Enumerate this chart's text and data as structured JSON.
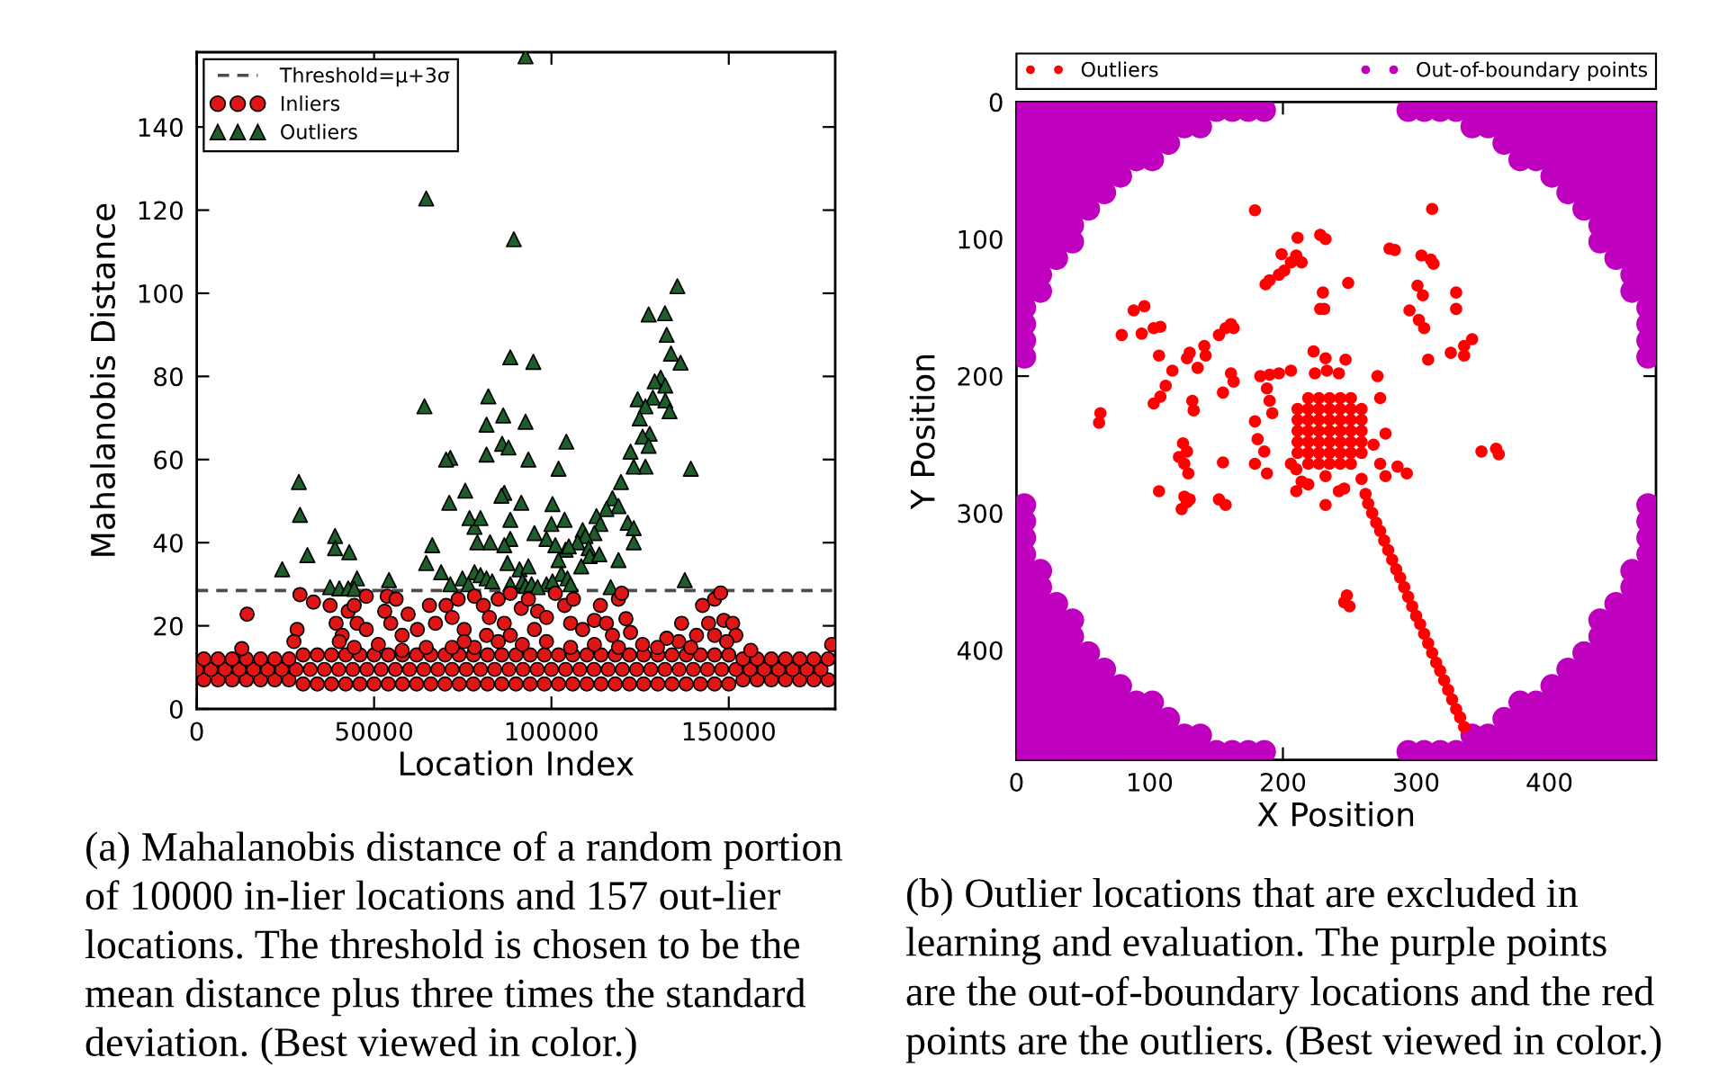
{
  "chart_data": [
    {
      "type": "scatter",
      "xlabel": "Location Index",
      "ylabel": "Mahalanobis Distance",
      "xlim": [
        0,
        180000
      ],
      "ylim": [
        0,
        158
      ],
      "xticks": [
        0,
        50000,
        100000,
        150000
      ],
      "yticks": [
        0,
        20,
        40,
        60,
        80,
        100,
        120,
        140
      ],
      "marker": "circle",
      "legend": "top left",
      "ref_lines": [
        {
          "axis": "y",
          "value": 28.5,
          "label": "Threshold=μ+3σ",
          "color": "#4d4d4d",
          "line_style": "dashed"
        }
      ],
      "series": [
        {
          "name": "Inliers",
          "color": "#e01515",
          "x": [
            2000,
            6000,
            10000,
            14000,
            18000,
            22000,
            26000,
            30000,
            34000,
            38000,
            42000,
            46000,
            50000,
            54000,
            58000,
            62000,
            66000,
            70000,
            74000,
            78000,
            82000,
            86000,
            90000,
            94000,
            98000,
            102000,
            106000,
            110000,
            114000,
            118000,
            122000,
            126000,
            130000,
            134000,
            138000,
            142000,
            146000,
            150000,
            154000,
            158000,
            162000,
            166000,
            170000,
            174000,
            178000,
            0,
            4000,
            8000,
            12000,
            16000,
            20000,
            24000,
            28000,
            32000,
            36000,
            40000,
            44000,
            48000,
            52000,
            56000,
            60000,
            64000,
            68000,
            72000,
            76000,
            80000,
            84000,
            88000,
            92000,
            96000,
            100000,
            104000,
            108000,
            112000,
            116000,
            120000,
            124000,
            128000,
            132000,
            136000,
            140000,
            144000,
            148000,
            152000,
            156000,
            160000,
            164000,
            168000,
            172000,
            176000,
            2000,
            6000,
            10000,
            14000,
            18000,
            22000,
            26000,
            30000,
            34000,
            38000,
            42000,
            46000,
            50000,
            54000,
            58000,
            62000,
            66000,
            70000,
            74000,
            78000,
            82000,
            86000,
            90000,
            94000,
            98000,
            102000,
            106000,
            110000,
            114000,
            118000,
            122000,
            126000,
            130000,
            134000,
            138000,
            142000,
            146000,
            150000,
            154000,
            158000,
            162000,
            166000,
            170000,
            174000,
            178000,
            14200,
            12700,
            29100,
            28300,
            27400,
            32900,
            37600,
            39300,
            41000,
            42700,
            45200,
            44400,
            47800,
            40200,
            47800,
            53000,
            54700,
            53700,
            56200,
            57900,
            59600,
            62200,
            65600,
            67300,
            70300,
            72000,
            73700,
            75400,
            78300,
            80800,
            82500,
            85000,
            86700,
            88400,
            91500,
            93500,
            96100,
            98600,
            101100,
            103700,
            106200,
            105400,
            108800,
            112100,
            113800,
            115500,
            117200,
            118900,
            121000,
            122300,
            119800,
            142600,
            146000,
            147700,
            144300,
            148600,
            151100,
            152000,
            146000,
            140900,
            136700,
            135900,
            132500,
            129900,
            179000,
            72000,
            78300,
            85000,
            91800,
            98600,
            105400,
            88400,
            95200,
            81700,
            75400,
            64700,
            57900,
            51200,
            44400,
            112100,
            118900,
            125700,
            139300,
            149400,
            156200
          ],
          "values": [
            7,
            7,
            7,
            7,
            7,
            7,
            7,
            6,
            6,
            6,
            6,
            6,
            6,
            6,
            6,
            6,
            6,
            6,
            6,
            6,
            6,
            6,
            6,
            6,
            6,
            6,
            6,
            6,
            6,
            6,
            6,
            6,
            6,
            6,
            6,
            6,
            6,
            6,
            7,
            7,
            7,
            7,
            7,
            7,
            7,
            9.5,
            9.5,
            9.5,
            9.5,
            9.5,
            9.5,
            9.5,
            9.5,
            9.5,
            9.5,
            9.5,
            9.5,
            9.5,
            9.5,
            9.5,
            9.5,
            9.5,
            9.5,
            9.5,
            9.5,
            9.5,
            9.5,
            9.5,
            9.5,
            9.5,
            9.5,
            9.5,
            9.5,
            9.5,
            9.5,
            9.5,
            9.5,
            9.5,
            9.5,
            9.5,
            9.5,
            9.5,
            9.5,
            9.5,
            9.5,
            9.5,
            9.5,
            9.5,
            9.5,
            9.5,
            12,
            12,
            12,
            12,
            12,
            12,
            12,
            13,
            13,
            13,
            13,
            13,
            13,
            13,
            13,
            13,
            13,
            13,
            13,
            13,
            13,
            13,
            13,
            13,
            13,
            13,
            13,
            13,
            13,
            13,
            13,
            13,
            13,
            13,
            13,
            13,
            13,
            13,
            12,
            12,
            12,
            12,
            12,
            12,
            12,
            22.8,
            14.5,
            27.5,
            19.1,
            16.2,
            25.7,
            24.9,
            20.6,
            17.7,
            23.5,
            20.6,
            24.9,
            19.1,
            16.2,
            27.1,
            23.5,
            20.6,
            27.1,
            26.4,
            17.7,
            22.8,
            19.1,
            24.9,
            20.6,
            24.9,
            22,
            26.4,
            19.1,
            27.1,
            24.9,
            22,
            26.4,
            20.6,
            27.8,
            24.2,
            26.4,
            23.5,
            22,
            27.8,
            24.9,
            26.4,
            20.6,
            19.1,
            21.3,
            24.9,
            20.6,
            17.7,
            26.4,
            21.7,
            18.4,
            27.8,
            24.9,
            26.4,
            27.9,
            20.6,
            21.3,
            20.6,
            17.7,
            17.7,
            17.7,
            20.6,
            16.2,
            17,
            14.8,
            15.5,
            14.8,
            14.8,
            16.2,
            15.5,
            16.2,
            14.8,
            17.7,
            19.1,
            17.7,
            16.2,
            14.8,
            14.1,
            15.5,
            14.8,
            15.5,
            14.8,
            15.5,
            14.8,
            16.2,
            14.1
          ]
        },
        {
          "name": "Outliers",
          "color": "#1d5e2a",
          "marker": "triangle",
          "x": [
            92700,
            64700,
            89400,
            135500,
            127400,
            132000,
            132500,
            133700,
            136400,
            88400,
            94900,
            130800,
            129100,
            132100,
            128600,
            124300,
            132100,
            133300,
            126500,
            124900,
            127700,
            125700,
            122300,
            127400,
            126500,
            123200,
            139300,
            119600,
            117200,
            118900,
            115500,
            121500,
            123200,
            123200,
            112700,
            113800,
            112100,
            108800,
            109600,
            107400,
            110500,
            110800,
            113500,
            108400,
            118900,
            104000,
            104900,
            103700,
            104200,
            102000,
            100300,
            100000,
            98600,
            101100,
            102000,
            102800,
            104500,
            98600,
            95200,
            93500,
            92700,
            91500,
            88400,
            88400,
            86700,
            85900,
            86100,
            87900,
            86400,
            81700,
            82200,
            81700,
            82700,
            78300,
            76900,
            80000,
            75700,
            79100,
            86700,
            87600,
            91000,
            93500,
            71200,
            71500,
            70300,
            64200,
            64700,
            66400,
            68900,
            71500,
            74900,
            78300,
            80000,
            81700,
            83300,
            76600,
            88400,
            91800,
            92700,
            94400,
            96100,
            100300,
            105400,
            116700,
            137600,
            28800,
            29100,
            31200,
            24100,
            39000,
            39000,
            43000,
            45200,
            37600,
            40200,
            42700,
            44400,
            54200
          ],
          "values": [
            157,
            122.8,
            113,
            101.7,
            94.9,
            95.2,
            90,
            85.5,
            83.3,
            84.6,
            83.5,
            79.7,
            78.8,
            77.8,
            74.9,
            74.5,
            74.2,
            71.6,
            72.8,
            69.9,
            66.2,
            65.5,
            61.9,
            63.3,
            58.3,
            58.3,
            57.8,
            54.6,
            50.7,
            48.8,
            48.1,
            44.8,
            43.5,
            40.1,
            46.4,
            44.5,
            42.3,
            43,
            41.6,
            40.1,
            38.7,
            36.8,
            37.2,
            34.3,
            35.8,
            38.3,
            39.1,
            45.5,
            64.3,
            57.8,
            49.3,
            44.5,
            40.9,
            39.4,
            35.8,
            32.5,
            31.4,
            30,
            42.3,
            60,
            69.1,
            49.6,
            45.5,
            40.9,
            52,
            51.3,
            63.8,
            62.9,
            70.6,
            68.4,
            75.2,
            61.2,
            40.1,
            43.8,
            45.9,
            45.9,
            52.5,
            40.1,
            39.4,
            35.1,
            33.6,
            34.3,
            49.6,
            60.4,
            60,
            72.8,
            35.1,
            39.4,
            32.9,
            30,
            31.4,
            32.9,
            32.2,
            31.4,
            30.7,
            30,
            30,
            30.7,
            29.6,
            30,
            29.3,
            30.7,
            30,
            29.3,
            31,
            54.6,
            46.7,
            37,
            33.6,
            41.6,
            38.7,
            37.7,
            31.4,
            29.3,
            29,
            29,
            28.9,
            31
          ]
        }
      ],
      "annotations": [
        "(a) Mahalanobis distance of a random portion of 10000 in-lier locations and 157 out-lier locations. The threshold is chosen to be the mean distance plus three times the standard deviation. (Best viewed in color.)"
      ]
    },
    {
      "type": "scatter",
      "xlabel": "X Position",
      "ylabel": "Y Position",
      "xlim": [
        0,
        480
      ],
      "ylim": [
        480,
        0
      ],
      "xticks": [
        0,
        100,
        200,
        300,
        400
      ],
      "yticks": [
        0,
        100,
        200,
        300,
        400
      ],
      "marker": "circle",
      "legend": "top",
      "series": [
        {
          "name": "Outliers",
          "color": "#ff0000",
          "x": [
            179,
            312,
            211,
            228,
            232,
            187,
            190,
            197,
            201,
            206,
            210,
            214,
            199,
            249,
            230,
            228,
            231,
            280,
            284,
            304,
            311,
            313,
            301,
            305,
            295,
            302,
            306,
            330,
            330,
            326,
            336,
            342,
            336,
            309,
            88,
            96,
            79,
            94,
            103,
            108,
            107,
            117,
            103,
            108,
            112,
            128,
            130,
            136,
            141,
            142,
            152,
            157,
            161,
            163,
            132,
            133,
            155,
            161,
            163,
            63,
            62,
            223,
            232,
            247,
            271,
            273,
            183,
            190,
            197,
            206,
            224,
            233,
            242,
            188,
            190,
            192,
            179,
            181,
            179,
            186,
            188,
            206,
            210,
            214,
            210,
            219,
            232,
            246,
            242,
            259,
            262,
            273,
            277,
            286,
            293,
            232,
            277,
            268,
            125,
            128,
            126,
            129,
            122,
            107,
            126,
            130,
            124,
            128,
            155,
            152,
            157,
            349,
            360,
            362,
            246,
            248,
            250,
            219,
            227,
            235,
            243,
            251,
            211,
            219,
            227,
            235,
            243,
            251,
            259,
            211,
            219,
            227,
            235,
            243,
            251,
            259,
            211,
            219,
            227,
            235,
            243,
            251,
            259,
            211,
            219,
            227,
            235,
            243,
            251,
            259,
            211,
            219,
            227,
            235,
            243,
            251,
            259,
            219,
            227,
            235,
            243,
            251,
            264,
            267,
            270,
            273,
            276,
            279,
            282,
            285,
            288,
            291,
            294,
            297,
            300,
            303,
            306,
            309,
            312,
            315,
            318,
            321,
            324,
            327,
            330,
            333,
            336
          ],
          "values": [
            79,
            78,
            99,
            97,
            100,
            133,
            130,
            126,
            123,
            117,
            112,
            117,
            111,
            132,
            139,
            151,
            151,
            107,
            108,
            112,
            115,
            118,
            134,
            141,
            152,
            159,
            165,
            139,
            151,
            183,
            178,
            173,
            185,
            188,
            152,
            149,
            170,
            169,
            165,
            164,
            185,
            196,
            220,
            215,
            207,
            187,
            183,
            194,
            178,
            185,
            170,
            165,
            162,
            165,
            218,
            225,
            212,
            198,
            204,
            227,
            234,
            182,
            187,
            188,
            200,
            216,
            200,
            199,
            198,
            196,
            198,
            196,
            198,
            209,
            218,
            227,
            233,
            246,
            264,
            255,
            271,
            264,
            268,
            277,
            284,
            279,
            273,
            282,
            284,
            275,
            286,
            264,
            273,
            266,
            271,
            294,
            242,
            250,
            249,
            255,
            264,
            271,
            259,
            284,
            288,
            290,
            297,
            292,
            263,
            290,
            294,
            255,
            253,
            257,
            365,
            360,
            368,
            216,
            216,
            216,
            216,
            216,
            224,
            224,
            224,
            224,
            224,
            224,
            224,
            232,
            232,
            232,
            232,
            232,
            232,
            232,
            240,
            240,
            240,
            240,
            240,
            240,
            240,
            248,
            248,
            248,
            248,
            248,
            248,
            248,
            256,
            256,
            256,
            256,
            256,
            256,
            256,
            264,
            264,
            264,
            264,
            264,
            293,
            300,
            307,
            313,
            320,
            327,
            334,
            341,
            347,
            354,
            361,
            368,
            375,
            381,
            388,
            395,
            402,
            409,
            415,
            422,
            429,
            436,
            443,
            449,
            456
          ]
        },
        {
          "name": "Out-of-boundary points",
          "color": "#bf00bf",
          "x": [
            6,
            18,
            30,
            42,
            54,
            66,
            78,
            90,
            102,
            114,
            126,
            138,
            150,
            162,
            174,
            186,
            474,
            462,
            450,
            438,
            426,
            414,
            402,
            390,
            378,
            366,
            354,
            342,
            330,
            318,
            306,
            294,
            6,
            18,
            30,
            42,
            54,
            66,
            78,
            90,
            102,
            114,
            126,
            138,
            474,
            462,
            450,
            438,
            426,
            414,
            402,
            390,
            378,
            366,
            354,
            342,
            6,
            18,
            30,
            42,
            54,
            66,
            78,
            90,
            102,
            114,
            474,
            462,
            450,
            438,
            426,
            414,
            402,
            390,
            378,
            366,
            6,
            18,
            30,
            42,
            54,
            66,
            78,
            90,
            102,
            474,
            462,
            450,
            438,
            426,
            414,
            402,
            390,
            378,
            6,
            18,
            30,
            42,
            54,
            66,
            78,
            474,
            462,
            450,
            438,
            426,
            414,
            402,
            6,
            18,
            30,
            42,
            54,
            66,
            474,
            462,
            450,
            438,
            426,
            414,
            6,
            18,
            30,
            42,
            54,
            474,
            462,
            450,
            438,
            426,
            6,
            18,
            30,
            42,
            474,
            462,
            450,
            438,
            6,
            18,
            30,
            42,
            474,
            462,
            450,
            438,
            6,
            18,
            30,
            474,
            462,
            450,
            6,
            18,
            474,
            462,
            6,
            18,
            474,
            462,
            6,
            474,
            6,
            474,
            6,
            474,
            6,
            474,
            6,
            474,
            6,
            474,
            6,
            474,
            6,
            474,
            6,
            18,
            474,
            462,
            6,
            18,
            474,
            462,
            6,
            18,
            30,
            474,
            462,
            450,
            6,
            18,
            30,
            42,
            474,
            462,
            450,
            438,
            6,
            18,
            30,
            42,
            474,
            462,
            450,
            438,
            6,
            18,
            30,
            42,
            54,
            474,
            462,
            450,
            438,
            426,
            6,
            18,
            30,
            42,
            54,
            66,
            474,
            462,
            450,
            438,
            426,
            414,
            6,
            18,
            30,
            42,
            54,
            66,
            78,
            474,
            462,
            450,
            438,
            426,
            414,
            402,
            6,
            18,
            30,
            42,
            54,
            66,
            78,
            90,
            102,
            474,
            462,
            450,
            438,
            426,
            414,
            402,
            390,
            378,
            6,
            18,
            30,
            42,
            54,
            66,
            78,
            90,
            102,
            114,
            474,
            462,
            450,
            438,
            426,
            414,
            402,
            390,
            378,
            366,
            6,
            18,
            30,
            42,
            54,
            66,
            78,
            90,
            102,
            114,
            126,
            138,
            474,
            462,
            450,
            438,
            426,
            414,
            402,
            390,
            378,
            366,
            354,
            342,
            6,
            18,
            30,
            42,
            54,
            66,
            78,
            90,
            102,
            114,
            126,
            138,
            150,
            162,
            174,
            186,
            474,
            462,
            450,
            438,
            426,
            414,
            402,
            390,
            378,
            366,
            354,
            342,
            330,
            318,
            306,
            294
          ],
          "values": [
            6,
            6,
            6,
            6,
            6,
            6,
            6,
            6,
            6,
            6,
            6,
            6,
            6,
            6,
            6,
            6,
            6,
            6,
            6,
            6,
            6,
            6,
            6,
            6,
            6,
            6,
            6,
            6,
            6,
            6,
            6,
            6,
            18,
            18,
            18,
            18,
            18,
            18,
            18,
            18,
            18,
            18,
            18,
            18,
            18,
            18,
            18,
            18,
            18,
            18,
            18,
            18,
            18,
            18,
            18,
            18,
            30,
            30,
            30,
            30,
            30,
            30,
            30,
            30,
            30,
            30,
            30,
            30,
            30,
            30,
            30,
            30,
            30,
            30,
            30,
            30,
            42,
            42,
            42,
            42,
            42,
            42,
            42,
            42,
            42,
            42,
            42,
            42,
            42,
            42,
            42,
            42,
            42,
            42,
            54,
            54,
            54,
            54,
            54,
            54,
            54,
            54,
            54,
            54,
            54,
            54,
            54,
            54,
            66,
            66,
            66,
            66,
            66,
            66,
            66,
            66,
            66,
            66,
            66,
            66,
            78,
            78,
            78,
            78,
            78,
            78,
            78,
            78,
            78,
            78,
            90,
            90,
            90,
            90,
            90,
            90,
            90,
            90,
            102,
            102,
            102,
            102,
            102,
            102,
            102,
            102,
            114,
            114,
            114,
            114,
            114,
            114,
            126,
            126,
            126,
            126,
            138,
            138,
            138,
            138,
            150,
            150,
            162,
            162,
            174,
            174,
            186,
            186,
            294,
            294,
            306,
            306,
            318,
            318,
            330,
            330,
            342,
            342,
            342,
            342,
            354,
            354,
            354,
            354,
            366,
            366,
            366,
            366,
            366,
            366,
            378,
            378,
            378,
            378,
            378,
            378,
            378,
            378,
            390,
            390,
            390,
            390,
            390,
            390,
            390,
            390,
            402,
            402,
            402,
            402,
            402,
            402,
            402,
            402,
            402,
            402,
            414,
            414,
            414,
            414,
            414,
            414,
            414,
            414,
            414,
            414,
            414,
            414,
            426,
            426,
            426,
            426,
            426,
            426,
            426,
            426,
            426,
            426,
            426,
            426,
            426,
            426,
            438,
            438,
            438,
            438,
            438,
            438,
            438,
            438,
            438,
            438,
            438,
            438,
            438,
            438,
            438,
            438,
            438,
            438,
            450,
            450,
            450,
            450,
            450,
            450,
            450,
            450,
            450,
            450,
            450,
            450,
            450,
            450,
            450,
            450,
            450,
            450,
            450,
            450,
            462,
            462,
            462,
            462,
            462,
            462,
            462,
            462,
            462,
            462,
            462,
            462,
            462,
            462,
            462,
            462,
            462,
            462,
            462,
            462,
            462,
            462,
            462,
            462,
            474,
            474,
            474,
            474,
            474,
            474,
            474,
            474,
            474,
            474,
            474,
            474,
            474,
            474,
            474,
            474,
            474,
            474,
            474,
            474,
            474,
            474,
            474,
            474,
            474,
            474,
            474,
            474,
            474,
            474,
            474,
            474
          ]
        }
      ],
      "annotations": [
        "(b) Outlier locations that are excluded in learning and evaluation. The purple points are the out-of-boundary locations and the red points are the outliers. (Best viewed in color.)"
      ]
    }
  ]
}
